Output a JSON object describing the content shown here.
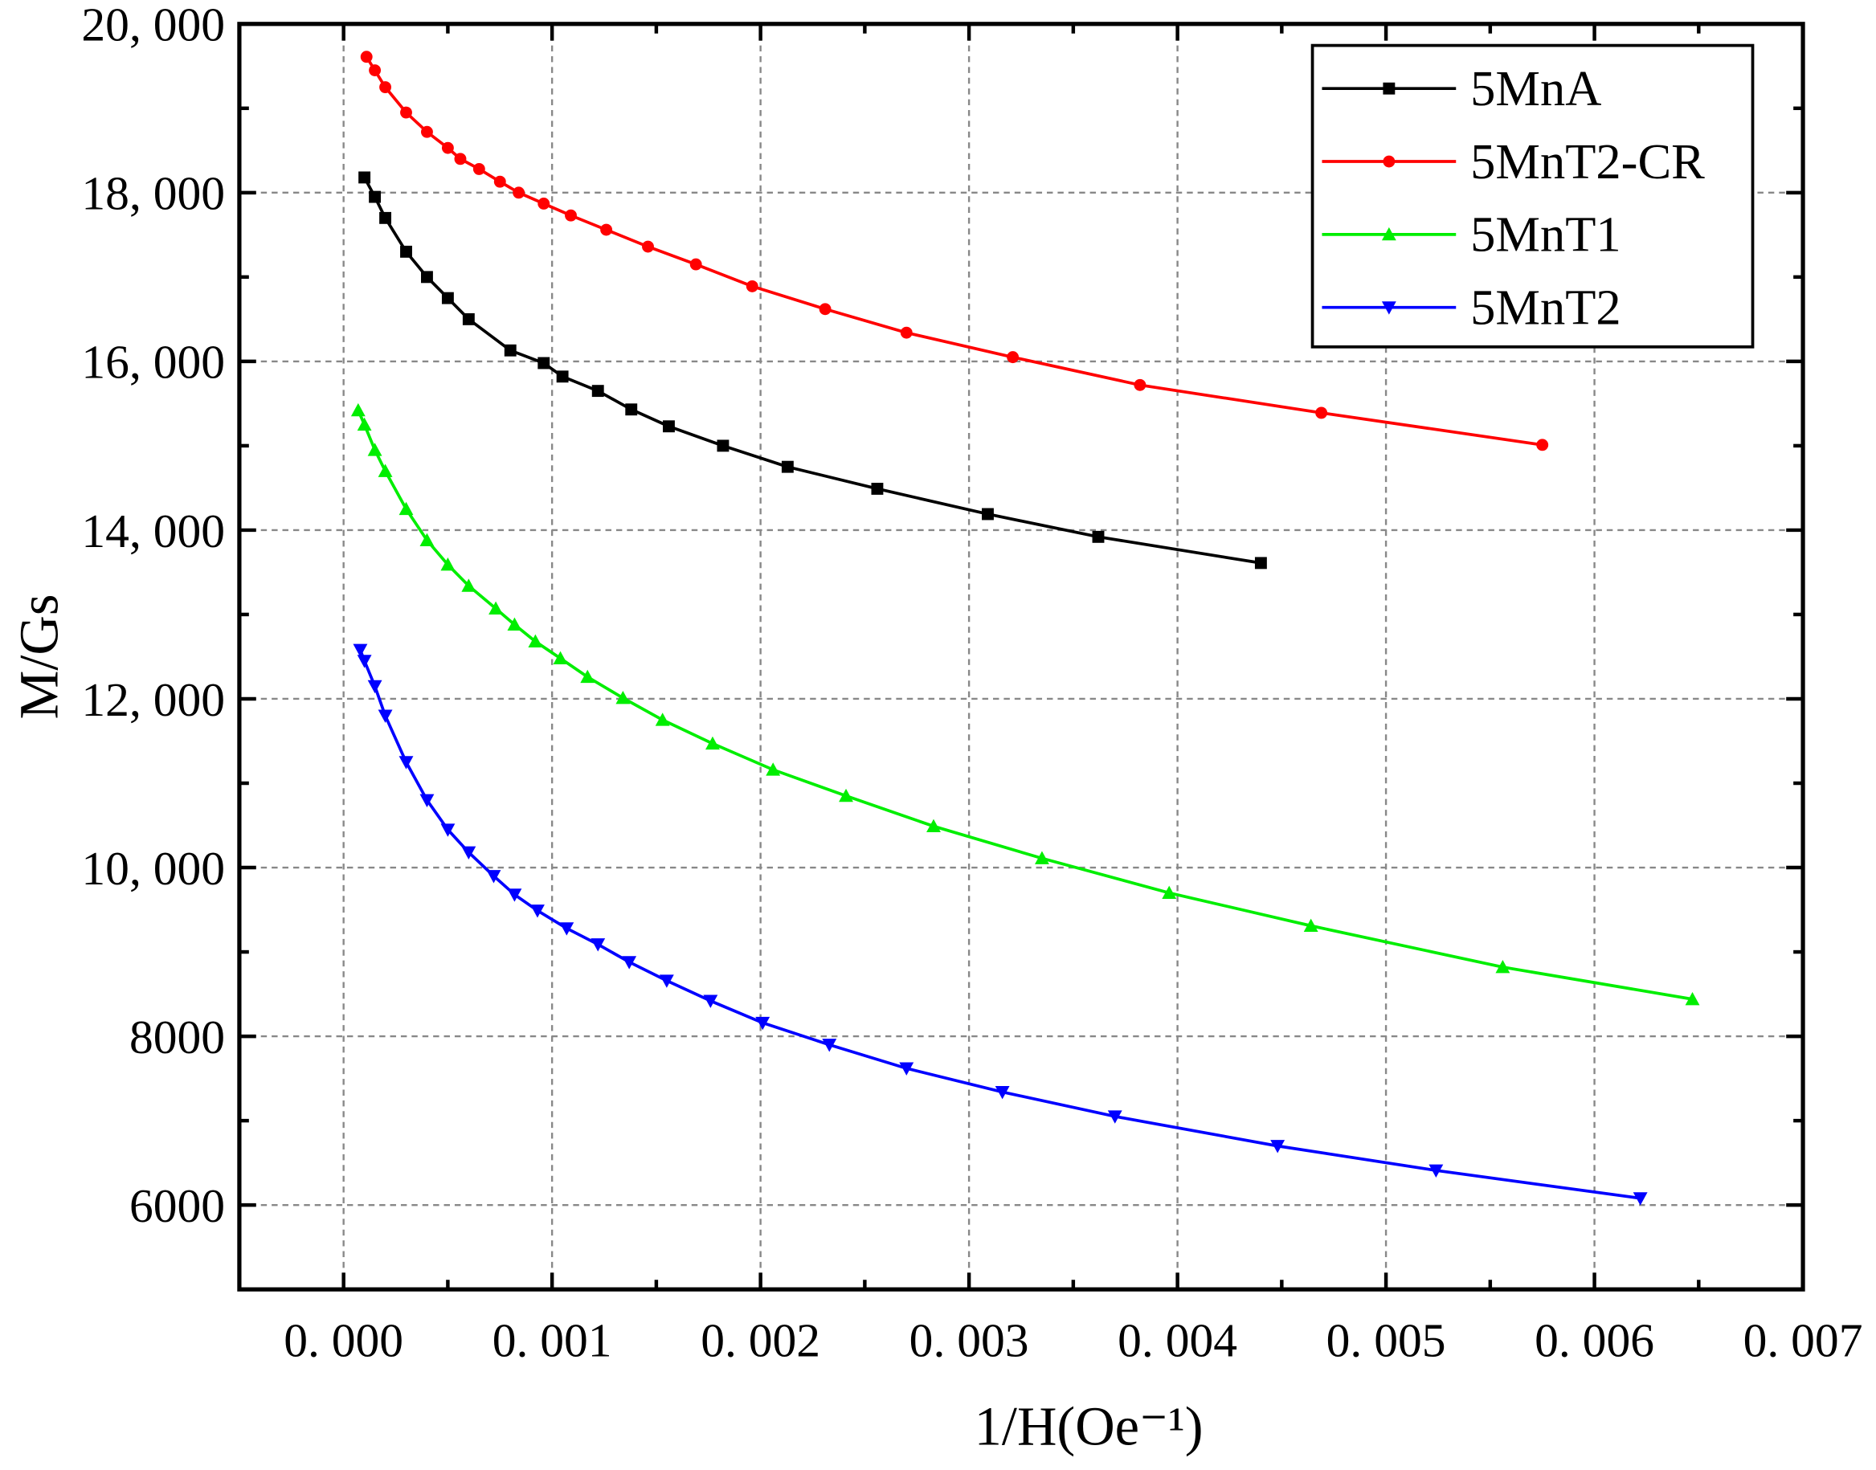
{
  "chart_data": {
    "type": "line",
    "xlabel": "1/H(Oe⁻¹)",
    "ylabel": "M/Gs",
    "xlim": [
      -0.0005,
      0.007
    ],
    "ylim": [
      5000,
      20000
    ],
    "xticks": [
      {
        "value": 0,
        "label": "0. 000"
      },
      {
        "value": 0.001,
        "label": "0. 001"
      },
      {
        "value": 0.002,
        "label": "0. 002"
      },
      {
        "value": 0.003,
        "label": "0. 003"
      },
      {
        "value": 0.004,
        "label": "0. 004"
      },
      {
        "value": 0.005,
        "label": "0. 005"
      },
      {
        "value": 0.006,
        "label": "0. 006"
      },
      {
        "value": 0.007,
        "label": "0. 007"
      }
    ],
    "yticks": [
      6000,
      8000,
      {
        "value": 10000,
        "label": "10, 000"
      },
      {
        "value": 12000,
        "label": "12, 000"
      },
      {
        "value": 14000,
        "label": "14, 000"
      },
      {
        "value": 16000,
        "label": "16, 000"
      },
      {
        "value": 18000,
        "label": "18, 000"
      },
      {
        "value": 20000,
        "label": "20, 000"
      }
    ],
    "grid": true,
    "legend": "upper right",
    "series": [
      {
        "name": "5MnA",
        "color": "#000000",
        "marker": "square",
        "x": [
          0.0001,
          0.00015,
          0.0002,
          0.0003,
          0.0004,
          0.0005,
          0.0006,
          0.0008,
          0.00096,
          0.00105,
          0.00122,
          0.00138,
          0.00156,
          0.00182,
          0.00213,
          0.00256,
          0.00309,
          0.00362,
          0.0044
        ],
        "values": [
          18180,
          17950,
          17700,
          17300,
          17000,
          16750,
          16500,
          16130,
          15980,
          15820,
          15650,
          15430,
          15230,
          15000,
          14750,
          14490,
          14190,
          13920,
          13610
        ]
      },
      {
        "name": "5MnT2-CR",
        "color": "#ff0000",
        "marker": "circle",
        "x": [
          0.00011,
          0.00015,
          0.0002,
          0.0003,
          0.0004,
          0.0005,
          0.00056,
          0.00065,
          0.00075,
          0.00084,
          0.00096,
          0.00109,
          0.00126,
          0.00146,
          0.00169,
          0.00196,
          0.00231,
          0.0027,
          0.00321,
          0.00382,
          0.00469,
          0.00575
        ],
        "values": [
          19610,
          19450,
          19250,
          18950,
          18720,
          18530,
          18400,
          18280,
          18130,
          18000,
          17870,
          17730,
          17560,
          17360,
          17150,
          16890,
          16620,
          16340,
          16050,
          15720,
          15390,
          15010
        ]
      },
      {
        "name": "5MnT1",
        "color": "#00ee00",
        "marker": "triangle-up",
        "x": [
          7e-05,
          0.0001,
          0.00015,
          0.0002,
          0.0003,
          0.0004,
          0.0005,
          0.0006,
          0.00073,
          0.00082,
          0.00092,
          0.00104,
          0.00117,
          0.00134,
          0.00153,
          0.00177,
          0.00206,
          0.00241,
          0.00283,
          0.00335,
          0.00396,
          0.00464,
          0.00556,
          0.00647
        ],
        "values": [
          15420,
          15250,
          14950,
          14700,
          14250,
          13880,
          13590,
          13340,
          13070,
          12880,
          12680,
          12480,
          12260,
          12010,
          11750,
          11470,
          11160,
          10850,
          10490,
          10110,
          9700,
          9310,
          8820,
          8440
        ]
      },
      {
        "name": "5MnT2",
        "color": "#0000ff",
        "marker": "triangle-down",
        "x": [
          8e-05,
          0.0001,
          0.00015,
          0.0002,
          0.0003,
          0.0004,
          0.0005,
          0.0006,
          0.00072,
          0.00082,
          0.00093,
          0.00107,
          0.00122,
          0.00137,
          0.00155,
          0.00176,
          0.00201,
          0.00233,
          0.0027,
          0.00316,
          0.0037,
          0.00448,
          0.00524,
          0.00622
        ],
        "values": [
          12580,
          12450,
          12150,
          11800,
          11250,
          10800,
          10450,
          10180,
          9900,
          9680,
          9490,
          9280,
          9090,
          8880,
          8660,
          8420,
          8160,
          7900,
          7620,
          7340,
          7050,
          6700,
          6410,
          6080
        ]
      }
    ]
  }
}
